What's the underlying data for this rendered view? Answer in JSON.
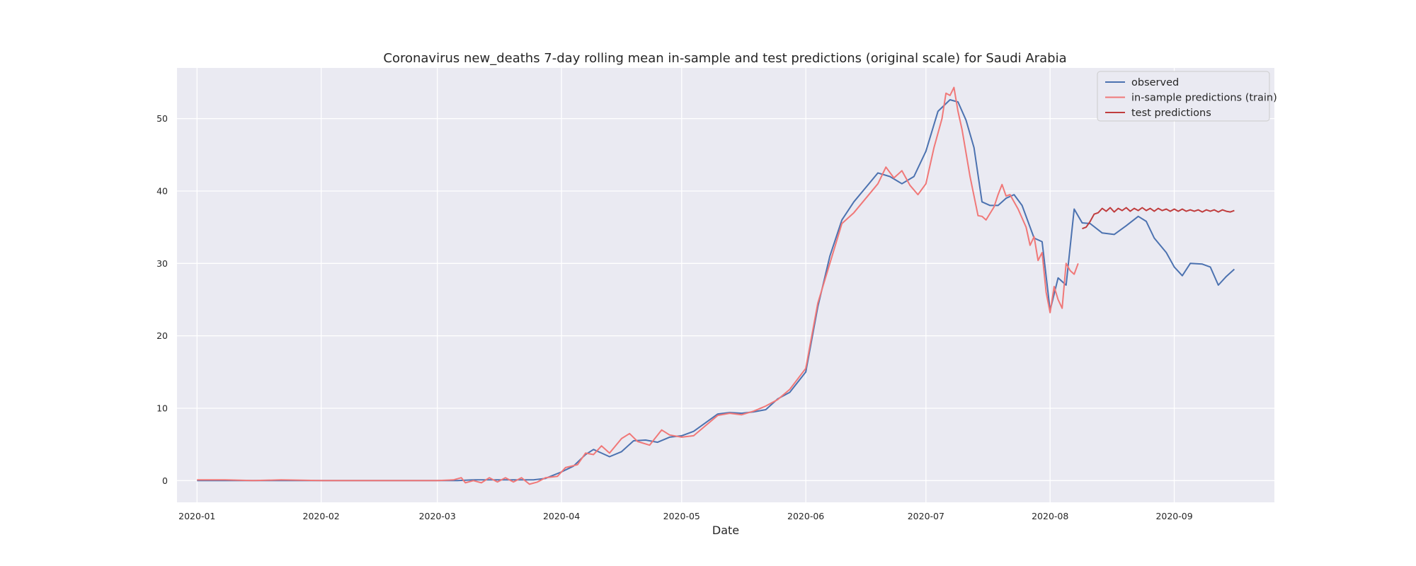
{
  "chart_data": {
    "type": "line",
    "title": "Coronavirus new_deaths 7-day rolling mean in-sample and test predictions (original scale) for Saudi Arabia",
    "xlabel": "Date",
    "ylabel": "",
    "x_range": [
      "2019-12-27",
      "2020-09-26"
    ],
    "ylim": [
      -3,
      57
    ],
    "x_ticks": [
      "2020-01",
      "2020-02",
      "2020-03",
      "2020-04",
      "2020-05",
      "2020-06",
      "2020-07",
      "2020-08",
      "2020-09"
    ],
    "y_ticks": [
      0,
      10,
      20,
      30,
      40,
      50
    ],
    "grid": true,
    "legend_position": "top-right",
    "series": [
      {
        "name": "observed",
        "color": "#4c72b0",
        "x": [
          "2020-01-01",
          "2020-01-08",
          "2020-01-15",
          "2020-01-22",
          "2020-01-29",
          "2020-02-05",
          "2020-02-12",
          "2020-02-19",
          "2020-02-26",
          "2020-03-02",
          "2020-03-06",
          "2020-03-10",
          "2020-03-14",
          "2020-03-18",
          "2020-03-22",
          "2020-03-25",
          "2020-03-28",
          "2020-04-01",
          "2020-04-04",
          "2020-04-07",
          "2020-04-09",
          "2020-04-11",
          "2020-04-13",
          "2020-04-16",
          "2020-04-19",
          "2020-04-22",
          "2020-04-25",
          "2020-04-28",
          "2020-05-01",
          "2020-05-04",
          "2020-05-07",
          "2020-05-10",
          "2020-05-13",
          "2020-05-16",
          "2020-05-19",
          "2020-05-22",
          "2020-05-25",
          "2020-05-28",
          "2020-06-01",
          "2020-06-04",
          "2020-06-07",
          "2020-06-10",
          "2020-06-13",
          "2020-06-16",
          "2020-06-19",
          "2020-06-22",
          "2020-06-25",
          "2020-06-28",
          "2020-07-01",
          "2020-07-04",
          "2020-07-07",
          "2020-07-09",
          "2020-07-11",
          "2020-07-13",
          "2020-07-15",
          "2020-07-17",
          "2020-07-19",
          "2020-07-21",
          "2020-07-23",
          "2020-07-25",
          "2020-07-28",
          "2020-07-30",
          "2020-08-01",
          "2020-08-03",
          "2020-08-05",
          "2020-08-07",
          "2020-08-09",
          "2020-08-11",
          "2020-08-14",
          "2020-08-17",
          "2020-08-20",
          "2020-08-23",
          "2020-08-25",
          "2020-08-27",
          "2020-08-30",
          "2020-09-01",
          "2020-09-03",
          "2020-09-05",
          "2020-09-08",
          "2020-09-10",
          "2020-09-12",
          "2020-09-14",
          "2020-09-16"
        ],
        "values": [
          0,
          0,
          0,
          0,
          0,
          0,
          0,
          0,
          0,
          0,
          0,
          0.1,
          0.1,
          0.1,
          0.1,
          0.1,
          0.3,
          1.2,
          2.0,
          3.6,
          4.3,
          3.8,
          3.3,
          4.0,
          5.5,
          5.6,
          5.3,
          6.0,
          6.2,
          6.8,
          8.0,
          9.2,
          9.4,
          9.3,
          9.5,
          9.8,
          11.3,
          12.2,
          15.0,
          24.0,
          31.0,
          36.0,
          38.5,
          40.5,
          42.5,
          42.0,
          41.0,
          42.0,
          45.5,
          51.0,
          52.6,
          52.3,
          49.8,
          46.0,
          38.5,
          38.0,
          38.0,
          39.0,
          39.5,
          38.0,
          33.5,
          33.0,
          23.5,
          28.0,
          27.0,
          37.5,
          35.6,
          35.5,
          34.2,
          34.0,
          35.2,
          36.5,
          35.8,
          33.5,
          31.5,
          29.5,
          28.3,
          30.0,
          29.9,
          29.5,
          27.0,
          28.2,
          29.2
        ]
      },
      {
        "name": "in-sample predictions (train)",
        "color": "#f07878",
        "x": [
          "2020-01-01",
          "2020-01-08",
          "2020-01-15",
          "2020-01-22",
          "2020-02-01",
          "2020-02-15",
          "2020-03-01",
          "2020-03-05",
          "2020-03-07",
          "2020-03-08",
          "2020-03-10",
          "2020-03-12",
          "2020-03-14",
          "2020-03-16",
          "2020-03-18",
          "2020-03-20",
          "2020-03-22",
          "2020-03-24",
          "2020-03-26",
          "2020-03-28",
          "2020-03-31",
          "2020-04-02",
          "2020-04-05",
          "2020-04-07",
          "2020-04-09",
          "2020-04-11",
          "2020-04-13",
          "2020-04-16",
          "2020-04-18",
          "2020-04-20",
          "2020-04-23",
          "2020-04-26",
          "2020-04-28",
          "2020-05-01",
          "2020-05-04",
          "2020-05-07",
          "2020-05-10",
          "2020-05-13",
          "2020-05-16",
          "2020-05-19",
          "2020-05-22",
          "2020-05-25",
          "2020-05-28",
          "2020-06-01",
          "2020-06-04",
          "2020-06-07",
          "2020-06-10",
          "2020-06-13",
          "2020-06-16",
          "2020-06-19",
          "2020-06-21",
          "2020-06-23",
          "2020-06-25",
          "2020-06-27",
          "2020-06-29",
          "2020-07-01",
          "2020-07-03",
          "2020-07-05",
          "2020-07-06",
          "2020-07-07",
          "2020-07-08",
          "2020-07-09",
          "2020-07-10",
          "2020-07-12",
          "2020-07-14",
          "2020-07-15",
          "2020-07-16",
          "2020-07-18",
          "2020-07-19",
          "2020-07-20",
          "2020-07-21",
          "2020-07-22",
          "2020-07-24",
          "2020-07-26",
          "2020-07-27",
          "2020-07-28",
          "2020-07-29",
          "2020-07-30",
          "2020-07-31",
          "2020-08-01",
          "2020-08-02",
          "2020-08-03",
          "2020-08-04",
          "2020-08-05",
          "2020-08-06",
          "2020-08-07",
          "2020-08-08"
        ],
        "values": [
          0.1,
          0.1,
          0,
          0.1,
          0,
          0,
          0,
          0.1,
          0.4,
          -0.3,
          0,
          -0.3,
          0.4,
          -0.2,
          0.4,
          -0.2,
          0.4,
          -0.5,
          -0.2,
          0.4,
          0.6,
          1.8,
          2.2,
          3.8,
          3.6,
          4.8,
          3.8,
          5.8,
          6.5,
          5.4,
          4.9,
          7.0,
          6.3,
          6.0,
          6.2,
          7.6,
          9.0,
          9.3,
          9.1,
          9.6,
          10.3,
          11.2,
          12.6,
          15.5,
          24.5,
          30.0,
          35.5,
          37.0,
          39.0,
          41.0,
          43.3,
          41.8,
          42.8,
          40.8,
          39.5,
          41.0,
          46.0,
          50.0,
          53.5,
          53.2,
          54.3,
          51.0,
          48.5,
          42.0,
          36.6,
          36.5,
          36.0,
          37.8,
          39.5,
          40.9,
          39.3,
          39.5,
          37.5,
          35.0,
          32.5,
          33.7,
          30.4,
          31.5,
          26.0,
          23.2,
          26.8,
          25.0,
          23.8,
          30.0,
          29.0,
          28.5,
          30.0
        ]
      },
      {
        "name": "test predictions",
        "color": "#c03d3e",
        "x": [
          "2020-08-09",
          "2020-08-10",
          "2020-08-11",
          "2020-08-12",
          "2020-08-13",
          "2020-08-14",
          "2020-08-15",
          "2020-08-16",
          "2020-08-17",
          "2020-08-18",
          "2020-08-19",
          "2020-08-20",
          "2020-08-21",
          "2020-08-22",
          "2020-08-23",
          "2020-08-24",
          "2020-08-25",
          "2020-08-26",
          "2020-08-27",
          "2020-08-28",
          "2020-08-29",
          "2020-08-30",
          "2020-08-31",
          "2020-09-01",
          "2020-09-02",
          "2020-09-03",
          "2020-09-04",
          "2020-09-05",
          "2020-09-06",
          "2020-09-07",
          "2020-09-08",
          "2020-09-09",
          "2020-09-10",
          "2020-09-11",
          "2020-09-12",
          "2020-09-13",
          "2020-09-14",
          "2020-09-15",
          "2020-09-16"
        ],
        "values": [
          34.8,
          35.0,
          35.8,
          36.8,
          37.0,
          37.6,
          37.2,
          37.7,
          37.1,
          37.6,
          37.3,
          37.7,
          37.2,
          37.6,
          37.3,
          37.7,
          37.3,
          37.6,
          37.2,
          37.6,
          37.3,
          37.5,
          37.2,
          37.5,
          37.2,
          37.5,
          37.2,
          37.4,
          37.2,
          37.4,
          37.1,
          37.4,
          37.2,
          37.4,
          37.1,
          37.4,
          37.2,
          37.1,
          37.3
        ]
      }
    ]
  }
}
